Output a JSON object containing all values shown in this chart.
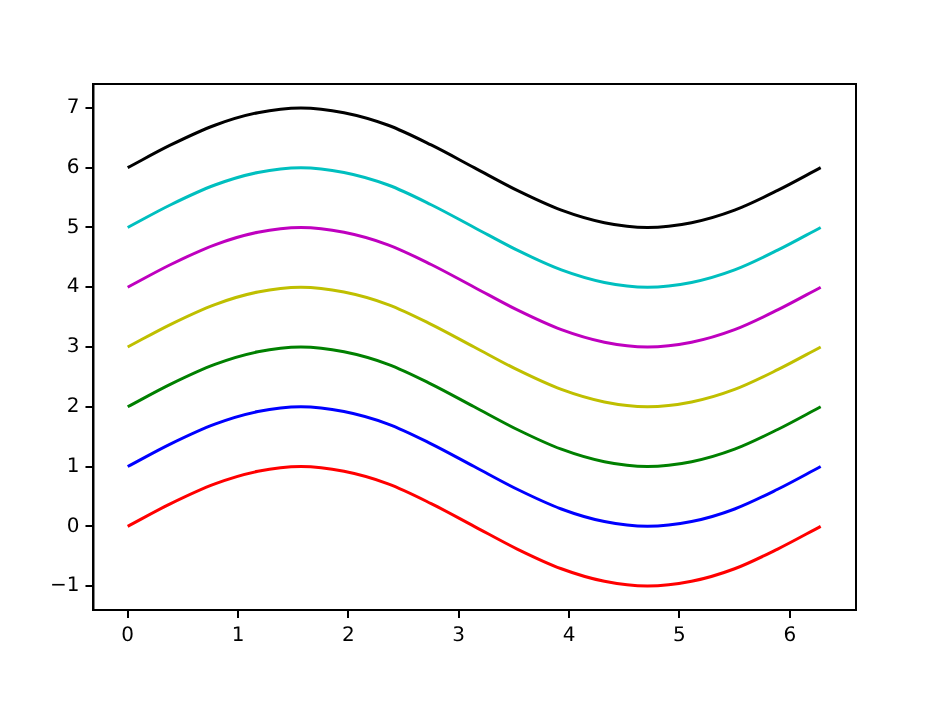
{
  "chart_data": {
    "type": "line",
    "x": [
      0,
      0.39,
      0.79,
      1.18,
      1.57,
      1.96,
      2.36,
      2.75,
      3.14,
      3.53,
      3.93,
      4.32,
      4.71,
      5.11,
      5.5,
      5.89,
      6.28
    ],
    "series": [
      {
        "color": "#ff0000",
        "values": [
          0,
          0.38,
          0.71,
          0.92,
          1,
          0.92,
          0.71,
          0.38,
          0,
          -0.38,
          -0.71,
          -0.92,
          -1,
          -0.92,
          -0.71,
          -0.38,
          0
        ]
      },
      {
        "color": "#0000ff",
        "values": [
          1,
          1.38,
          1.71,
          1.92,
          2,
          1.92,
          1.71,
          1.38,
          1,
          0.62,
          0.29,
          0.08,
          0,
          0.08,
          0.29,
          0.62,
          1
        ]
      },
      {
        "color": "#008000",
        "values": [
          2,
          2.38,
          2.71,
          2.92,
          3,
          2.92,
          2.71,
          2.38,
          2,
          1.62,
          1.29,
          1.08,
          1,
          1.08,
          1.29,
          1.62,
          2
        ]
      },
      {
        "color": "#bfbf00",
        "values": [
          3,
          3.38,
          3.71,
          3.92,
          4,
          3.92,
          3.71,
          3.38,
          3,
          2.62,
          2.29,
          2.08,
          2,
          2.08,
          2.29,
          2.62,
          3
        ]
      },
      {
        "color": "#bf00bf",
        "values": [
          4,
          4.38,
          4.71,
          4.92,
          5,
          4.92,
          4.71,
          4.38,
          4,
          3.62,
          3.29,
          3.08,
          3,
          3.08,
          3.29,
          3.62,
          4
        ]
      },
      {
        "color": "#00bfbf",
        "values": [
          5,
          5.38,
          5.71,
          5.92,
          6,
          5.92,
          5.71,
          5.38,
          5,
          4.62,
          4.29,
          4.08,
          4,
          4.08,
          4.29,
          4.62,
          5
        ]
      },
      {
        "color": "#000000",
        "values": [
          6,
          6.38,
          6.71,
          6.92,
          7,
          6.92,
          6.71,
          6.38,
          6,
          5.62,
          5.29,
          5.08,
          5,
          5.08,
          5.29,
          5.62,
          6
        ]
      }
    ],
    "xlim": [
      -0.31,
      6.6
    ],
    "xticks": [
      0,
      1,
      2,
      3,
      4,
      5,
      6
    ],
    "ylim": [
      -1.4,
      7.4
    ],
    "yticks": [
      {
        "value": -1,
        "label": "−1"
      },
      0,
      1,
      2,
      3,
      4,
      5,
      6,
      7
    ],
    "grid": false,
    "legend": false,
    "marker": "none",
    "line_style": "solid"
  }
}
